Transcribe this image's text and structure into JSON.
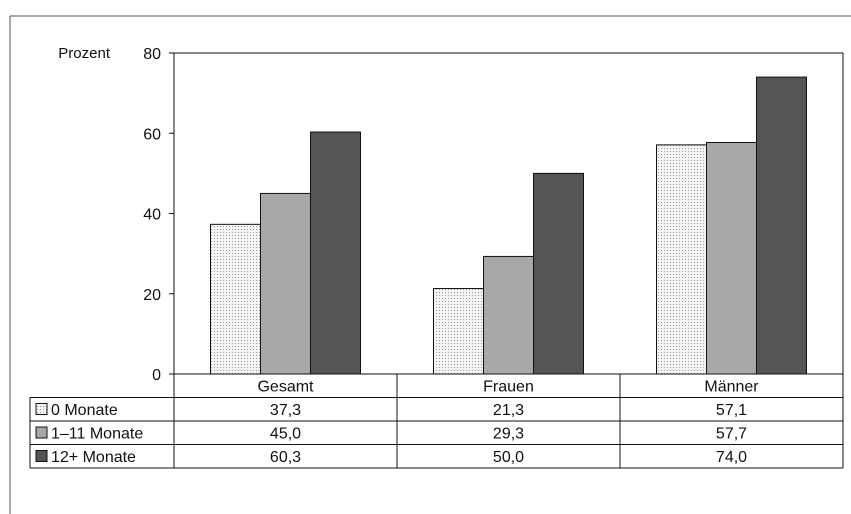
{
  "chart_data": {
    "type": "bar",
    "ylabel": "Prozent",
    "ylim": [
      0,
      80
    ],
    "yticks": [
      "0",
      "20",
      "40",
      "60",
      "80"
    ],
    "categories": [
      "Gesamt",
      "Frauen",
      "Männer"
    ],
    "series": [
      {
        "name": "0 Monate",
        "values": [
          37.3,
          21.3,
          57.1
        ],
        "labels": [
          "37,3",
          "21,3",
          "57,1"
        ],
        "color": "#e8e8e8",
        "pattern": "dotted"
      },
      {
        "name": "1–11 Monate",
        "values": [
          45.0,
          29.3,
          57.7
        ],
        "labels": [
          "45,0",
          "29,3",
          "57,7"
        ],
        "color": "#a8a8aa"
      },
      {
        "name": "12+ Monate",
        "values": [
          60.3,
          50.0,
          74.0
        ],
        "labels": [
          "60,3",
          "50,0",
          "74,0"
        ],
        "color": "#555555"
      }
    ],
    "grid": false,
    "legend": "data-table"
  }
}
